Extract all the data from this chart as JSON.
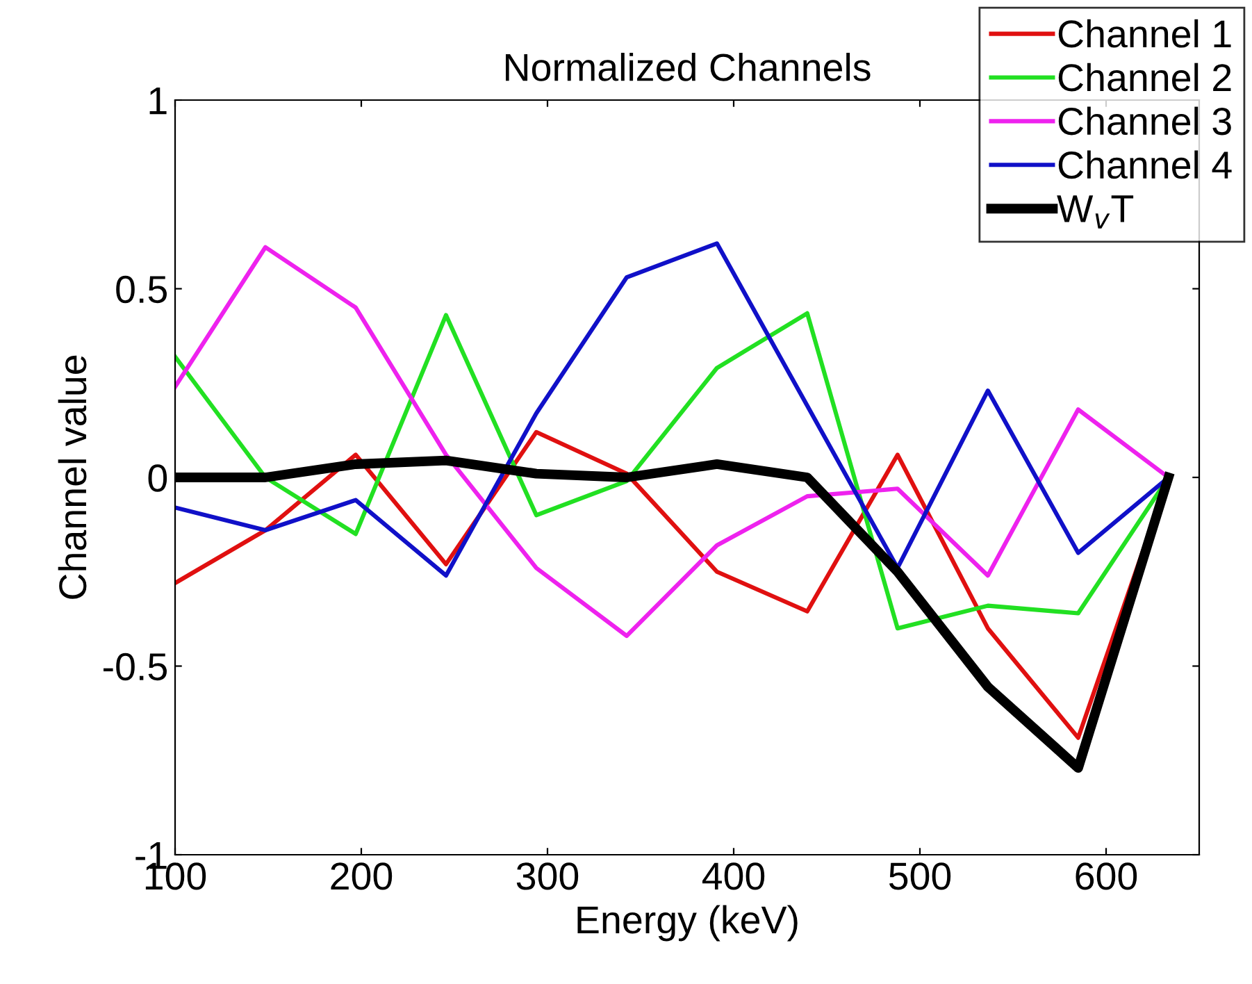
{
  "chart_data": {
    "type": "line",
    "title": "Normalized Channels",
    "xlabel": "Energy (keV)",
    "ylabel": "Channel value",
    "x": [
      100,
      148.5,
      197,
      245.5,
      294,
      342.5,
      391,
      439.5,
      488,
      536.5,
      585,
      633.5
    ],
    "series": [
      {
        "name": "Channel 1",
        "color": "#e01010",
        "values": [
          -0.28,
          -0.14,
          0.06,
          -0.23,
          0.12,
          0.01,
          -0.25,
          -0.355,
          0.06,
          -0.4,
          -0.69,
          0
        ]
      },
      {
        "name": "Channel 2",
        "color": "#22e022",
        "values": [
          0.32,
          0.0,
          -0.15,
          0.43,
          -0.1,
          -0.01,
          0.29,
          0.435,
          -0.4,
          -0.34,
          -0.36,
          0
        ]
      },
      {
        "name": "Channel 3",
        "color": "#ee22ee",
        "values": [
          0.24,
          0.61,
          0.45,
          0.06,
          -0.24,
          -0.42,
          -0.18,
          -0.05,
          -0.03,
          -0.26,
          0.18,
          0
        ]
      },
      {
        "name": "Channel 4",
        "color": "#1010c8",
        "values": [
          -0.08,
          -0.14,
          -0.06,
          -0.26,
          0.17,
          0.53,
          0.62,
          0.19,
          -0.24,
          0.23,
          -0.2,
          0
        ]
      },
      {
        "name": "W$_{v}$T",
        "color": "#000000",
        "values": [
          0,
          0,
          0.035,
          0.045,
          0.01,
          0.0,
          0.035,
          0,
          -0.25,
          -0.555,
          -0.77,
          0
        ]
      }
    ],
    "xlim": [
      100,
      650
    ],
    "ylim": [
      -1,
      1
    ],
    "xticks": [
      100,
      200,
      300,
      400,
      500,
      600
    ],
    "yticks": [
      -1,
      -0.5,
      0,
      0.5,
      1
    ],
    "grid": false,
    "legend": "top right",
    "marker": "none",
    "line_style": "solid"
  }
}
